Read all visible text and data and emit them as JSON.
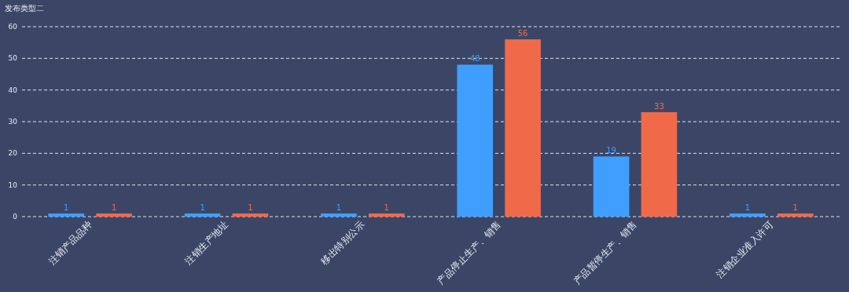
{
  "chart_data": {
    "type": "bar",
    "title": "发布类型二",
    "categories": [
      "注销产品品种",
      "注销生产地址",
      "移出特别公示",
      "产品停止生产、销售",
      "产品暂停生产、销售",
      "注销企业准入许可"
    ],
    "series": [
      {
        "color": "#409eff",
        "values": [
          1,
          1,
          1,
          48,
          19,
          1
        ]
      },
      {
        "color": "#f06a4a",
        "values": [
          1,
          1,
          1,
          56,
          33,
          1
        ]
      }
    ],
    "ylim": [
      0,
      60
    ],
    "yticks": [
      0,
      10,
      20,
      30,
      40,
      50,
      60
    ],
    "grid": "y",
    "data_labels": true
  }
}
